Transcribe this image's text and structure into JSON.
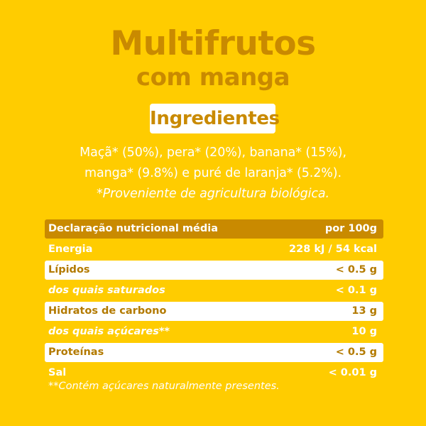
{
  "title": {
    "line1": "Multifrutos",
    "line2": "com manga"
  },
  "ingredients": {
    "heading": "Ingredientes",
    "line1": "Maçã* (50%), pera* (20%), banana* (15%),",
    "line2": "manga* (9.8%) e puré de laranja* (5.2%).",
    "note": "*Proveniente de agricultura biológica."
  },
  "nutrition": {
    "header_label": "Declaração nutricional média",
    "header_value": "por 100g",
    "rows": [
      {
        "label": "Energia",
        "value": "228 kJ / 54 kcal"
      },
      {
        "label": "Lípidos",
        "value": "< 0.5 g"
      },
      {
        "label": "dos quais saturados",
        "value": "< 0.1 g"
      },
      {
        "label": "Hidratos de carbono",
        "value": "13 g"
      },
      {
        "label": "dos quais açúcares**",
        "value": "10 g"
      },
      {
        "label": "Proteínas",
        "value": "< 0.5 g"
      },
      {
        "label": "Sal",
        "value": "< 0.01 g"
      }
    ],
    "footnote": "**Contém açúcares naturalmente presentes."
  },
  "colors": {
    "background": "#FFCC00",
    "accent": "#C98A00",
    "row_white": "#FFFFFF"
  }
}
